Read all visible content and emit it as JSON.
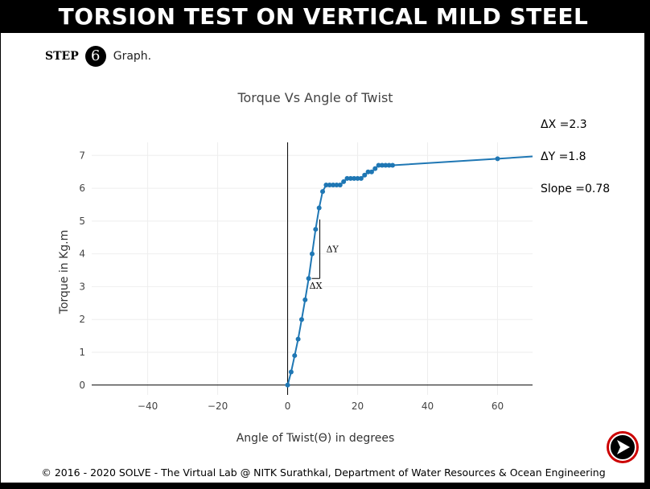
{
  "header": {
    "title": "TORSION TEST ON VERTICAL MILD STEEL"
  },
  "step": {
    "label": "STEP",
    "number": "6",
    "text": "Graph."
  },
  "readouts": {
    "dx": "ΔX =2.3",
    "dy": "ΔY =1.8",
    "slope": "Slope =0.78"
  },
  "chart_data": {
    "type": "line",
    "title": "Torque Vs Angle of Twist",
    "xlabel": "Angle of Twist(Θ) in degrees",
    "ylabel": "Torque in Kg.m",
    "xlim": [
      -56,
      70
    ],
    "ylim": [
      -0.3,
      7.4
    ],
    "x_ticks": [
      -40,
      -20,
      0,
      20,
      40,
      60
    ],
    "y_ticks": [
      0,
      1,
      2,
      3,
      4,
      5,
      6,
      7
    ],
    "grid": true,
    "line_color": "#1f77b4",
    "series": [
      {
        "x": [
          0,
          1,
          2,
          3,
          4,
          5,
          6,
          7,
          8,
          9,
          10,
          11,
          12,
          13,
          14,
          15,
          16,
          17,
          18,
          19,
          20,
          21,
          22,
          23,
          24,
          25,
          26,
          27,
          28,
          29,
          30,
          60,
          70
        ],
        "y": [
          0,
          0.4,
          0.9,
          1.4,
          2.0,
          2.6,
          3.25,
          4.0,
          4.75,
          5.4,
          5.9,
          6.1,
          6.1,
          6.1,
          6.1,
          6.1,
          6.2,
          6.3,
          6.3,
          6.3,
          6.3,
          6.3,
          6.4,
          6.5,
          6.5,
          6.6,
          6.7,
          6.7,
          6.7,
          6.7,
          6.7,
          6.9,
          6.97
        ],
        "markers": [
          true,
          true,
          true,
          true,
          true,
          true,
          true,
          true,
          true,
          true,
          true,
          true,
          true,
          true,
          true,
          true,
          true,
          true,
          true,
          true,
          true,
          true,
          true,
          true,
          true,
          true,
          true,
          true,
          true,
          true,
          true,
          true,
          false
        ]
      }
    ],
    "slope_triangle": {
      "x1": 6.9,
      "x2": 9.2,
      "y1": 3.25,
      "y2": 5.05,
      "dx_label": "ΔX",
      "dy_label": "ΔY"
    }
  },
  "footer": {
    "text": "© 2016 - 2020 SOLVE - The Virtual Lab @ NITK Surathkal, Department of Water Resources & Ocean Engineering"
  },
  "next": {
    "icon": "play-arrow-icon",
    "ring_color": "#cc0000"
  }
}
